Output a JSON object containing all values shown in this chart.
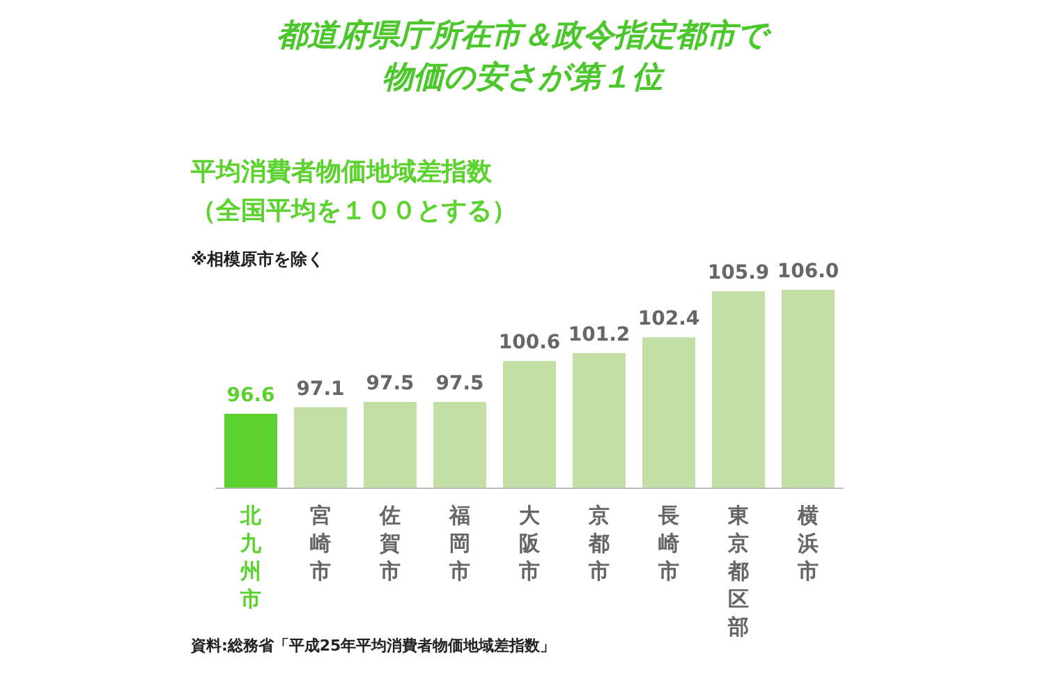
{
  "chart_data": {
    "type": "bar",
    "title": "都道府県庁所在市＆政令指定都市で物価の安さが第１位",
    "subtitle": "平均消費者物価地域差指数（全国平均を１００とする）",
    "annotations": [
      "※相模原市を除く",
      "資料:総務省「平成25年平均消費者物価地域差指数」"
    ],
    "categories": [
      "北九州市",
      "宮崎市",
      "佐賀市",
      "福岡市",
      "大阪市",
      "京都市",
      "長崎市",
      "東京都区部",
      "横浜市"
    ],
    "values": [
      96.6,
      97.1,
      97.5,
      97.5,
      100.6,
      101.2,
      102.4,
      105.9,
      106.0
    ],
    "colors": [
      "#5cd22f",
      "#c3dfa6",
      "#c3dfa6",
      "#c3dfa6",
      "#c3dfa6",
      "#c3dfa6",
      "#c3dfa6",
      "#c3dfa6",
      "#c3dfa6"
    ],
    "value_labels": [
      "96.6",
      "97.1",
      "97.5",
      "97.5",
      "100.6",
      "101.2",
      "102.4",
      "105.9",
      "106.0"
    ],
    "ylim": [
      91,
      106
    ],
    "tick_labels": "x"
  }
}
